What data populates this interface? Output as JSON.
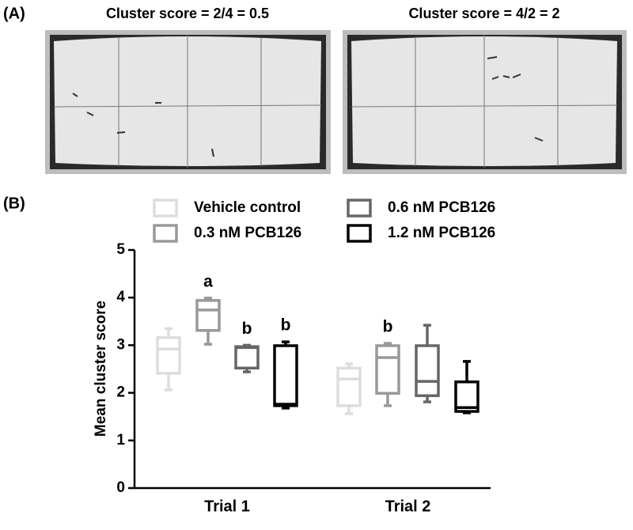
{
  "panel_a_label": "(A)",
  "panel_b_label": "(B)",
  "images": [
    {
      "caption": "Cluster score = 2/4 = 0.5"
    },
    {
      "caption": "Cluster score = 4/2 = 2"
    }
  ],
  "chart_data": {
    "type": "box",
    "y_label": "Mean cluster score",
    "categories": [
      "Trial 1",
      "Trial 2"
    ],
    "ylim": [
      0,
      5
    ],
    "yticks": [
      0,
      1,
      2,
      3,
      4,
      5
    ],
    "series": [
      {
        "name": "Vehicle control",
        "color": "#dddddd",
        "values": [
          [
            2.06,
            2.41,
            2.92,
            3.16,
            3.35
          ],
          [
            1.56,
            1.73,
            2.29,
            2.52,
            2.61
          ]
        ],
        "annotations": [
          null,
          null
        ]
      },
      {
        "name": "0.3 nM PCB126",
        "color": "#999999",
        "values": [
          [
            3.02,
            3.31,
            3.74,
            3.94,
            3.99
          ],
          [
            1.73,
            1.99,
            2.74,
            2.99,
            3.04
          ]
        ],
        "annotations": [
          "a",
          "b"
        ]
      },
      {
        "name": "0.6 nM PCB126",
        "color": "#666666",
        "values": [
          [
            2.44,
            2.52,
            2.95,
            2.97,
            3.0
          ],
          [
            1.81,
            1.94,
            2.24,
            2.99,
            3.42
          ]
        ],
        "annotations": [
          "b",
          null
        ]
      },
      {
        "name": "1.2 nM PCB126",
        "color": "#000000",
        "values": [
          [
            1.68,
            1.73,
            1.76,
            2.99,
            3.07
          ],
          [
            1.58,
            1.61,
            1.69,
            2.23,
            2.66
          ]
        ],
        "annotations": [
          "b",
          null
        ]
      }
    ]
  }
}
